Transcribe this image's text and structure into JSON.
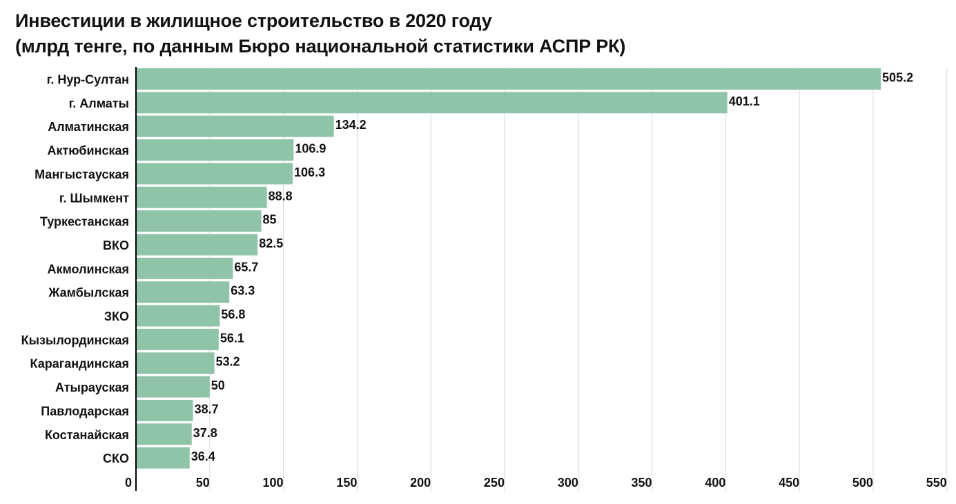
{
  "chart_data": {
    "type": "bar",
    "orientation": "horizontal",
    "title": "Инвестиции в жилищное строительство в 2020 году",
    "subtitle": "(млрд тенге, по данным Бюро национальной статистики АСПР РК)",
    "xlabel": "",
    "ylabel": "",
    "categories": [
      "г. Нур-Султан",
      "г. Алматы",
      "Алматинская",
      "Актюбинская",
      "Мангыстауская",
      "г. Шымкент",
      "Туркестанская",
      "ВКО",
      "Акмолинская",
      "Жамбылская",
      "ЗКО",
      "Кызылординская",
      "Карагандинская",
      "Атырауская",
      "Павлодарская",
      "Костанайская",
      "СКО"
    ],
    "values": [
      505.2,
      401.1,
      134.2,
      106.9,
      106.3,
      88.8,
      85,
      82.5,
      65.7,
      63.3,
      56.8,
      56.1,
      53.2,
      50,
      38.7,
      37.8,
      36.4
    ],
    "data_labels": [
      "505.2",
      "401.1",
      "134.2",
      "106.9",
      "106.3",
      "88.8",
      "85",
      "82.5",
      "65.7",
      "63.3",
      "56.8",
      "56.1",
      "53.2",
      "50",
      "38.7",
      "37.8",
      "36.4"
    ],
    "xlim": [
      0,
      550
    ],
    "xticks": [
      0,
      50,
      100,
      150,
      200,
      250,
      300,
      350,
      400,
      450,
      500,
      550
    ],
    "grid": true,
    "legend": "none",
    "colors": {
      "bar": "#8fc4a8",
      "grid": "#d9d9d9",
      "axis": "#000000",
      "text": "#111111"
    }
  }
}
